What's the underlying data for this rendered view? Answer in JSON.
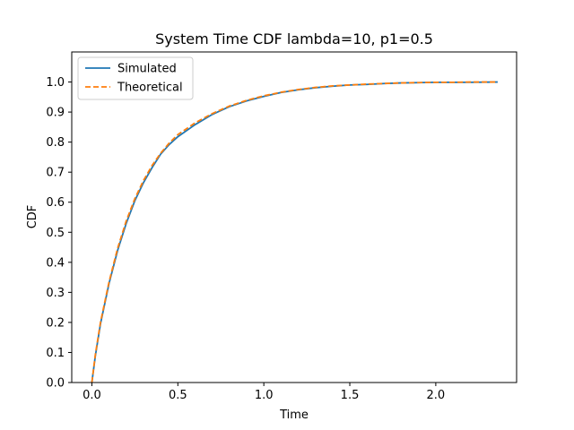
{
  "chart_data": {
    "type": "line",
    "title": "System Time CDF  lambda=10, p1=0.5",
    "xlabel": "Time",
    "ylabel": "CDF",
    "xlim": [
      -0.117,
      2.47
    ],
    "ylim": [
      0.0,
      1.1
    ],
    "xticks": [
      "0.0",
      "0.5",
      "1.0",
      "1.5",
      "2.0"
    ],
    "xtick_values": [
      0.0,
      0.5,
      1.0,
      1.5,
      2.0
    ],
    "yticks": [
      "0.0",
      "0.1",
      "0.2",
      "0.3",
      "0.4",
      "0.5",
      "0.6",
      "0.7",
      "0.8",
      "0.9",
      "1.0"
    ],
    "ytick_values": [
      0.0,
      0.1,
      0.2,
      0.3,
      0.4,
      0.5,
      0.6,
      0.7,
      0.8,
      0.9,
      1.0
    ],
    "grid": false,
    "legend_position": "top-left",
    "series": [
      {
        "name": "Simulated",
        "color": "#1f77b4",
        "style": "solid",
        "x": [
          0.0,
          0.02,
          0.05,
          0.1,
          0.15,
          0.2,
          0.25,
          0.3,
          0.35,
          0.4,
          0.45,
          0.5,
          0.6,
          0.7,
          0.8,
          0.9,
          1.0,
          1.1,
          1.2,
          1.3,
          1.4,
          1.5,
          1.6,
          1.7,
          1.8,
          1.9,
          2.0,
          2.1,
          2.2,
          2.36
        ],
        "y": [
          0.0,
          0.088,
          0.195,
          0.33,
          0.44,
          0.53,
          0.605,
          0.665,
          0.715,
          0.76,
          0.792,
          0.818,
          0.858,
          0.892,
          0.918,
          0.937,
          0.952,
          0.965,
          0.974,
          0.981,
          0.986,
          0.99,
          0.992,
          0.995,
          0.997,
          0.998,
          0.999,
          0.999,
          0.999,
          1.0
        ]
      },
      {
        "name": "Theoretical",
        "color": "#ff7f0e",
        "style": "dashed",
        "x": [
          0.0,
          0.02,
          0.05,
          0.1,
          0.15,
          0.2,
          0.25,
          0.3,
          0.35,
          0.4,
          0.45,
          0.5,
          0.6,
          0.7,
          0.8,
          0.9,
          1.0,
          1.1,
          1.2,
          1.3,
          1.4,
          1.5,
          1.6,
          1.7,
          1.8,
          1.9,
          2.0,
          2.1,
          2.2,
          2.36
        ],
        "y": [
          0.0,
          0.092,
          0.2,
          0.335,
          0.447,
          0.538,
          0.612,
          0.672,
          0.722,
          0.763,
          0.797,
          0.825,
          0.864,
          0.895,
          0.92,
          0.939,
          0.954,
          0.966,
          0.975,
          0.982,
          0.987,
          0.99,
          0.993,
          0.995,
          0.997,
          0.998,
          0.999,
          0.999,
          1.0,
          1.0
        ]
      }
    ]
  }
}
